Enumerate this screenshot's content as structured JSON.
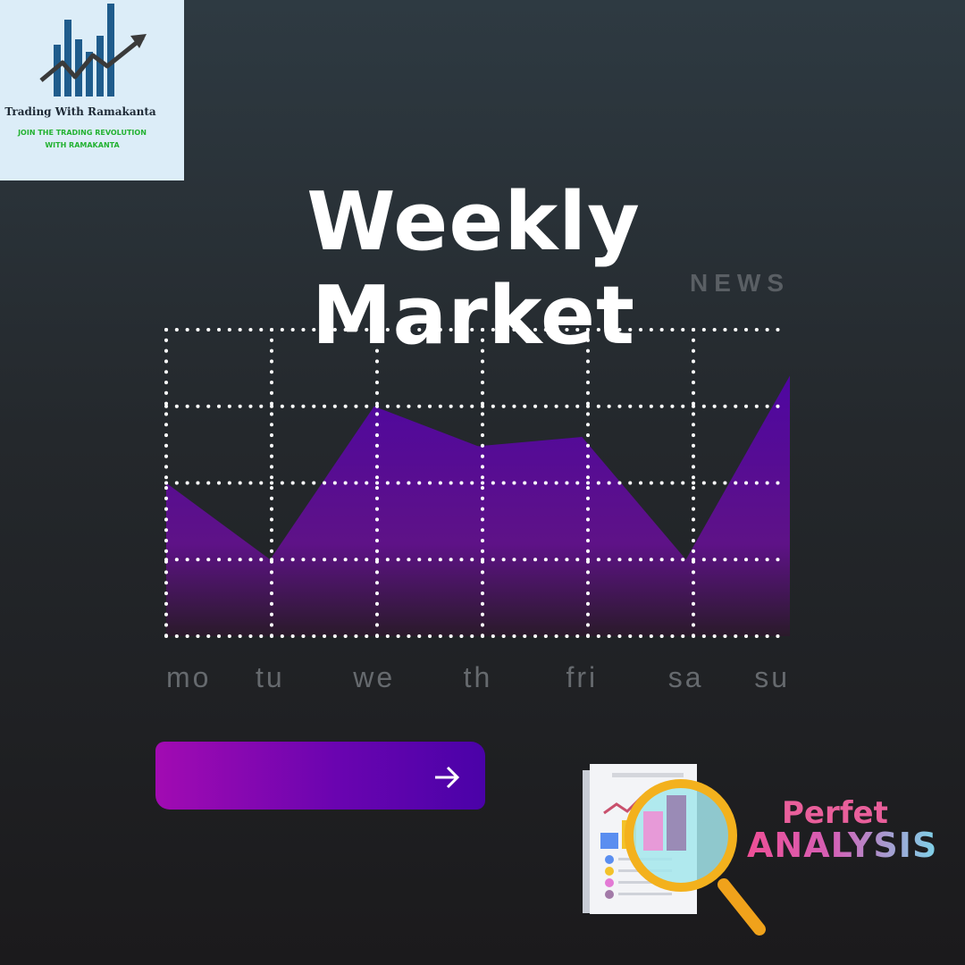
{
  "brand": {
    "name": "Trading With Ramakanta",
    "tagline_line1": "JOIN THE TRADING REVOLUTION",
    "tagline_line2": "WITH RAMAKANTA",
    "icon": "bar-chart-growth-arrow-logo",
    "colors": {
      "bars": "#1f5c8c",
      "arrow": "#3a3a3a",
      "tagline": "#23b232"
    }
  },
  "heading": {
    "title": "Weekly Market",
    "subtitle": "NEWS"
  },
  "chart_data": {
    "type": "area",
    "categories": [
      "mo",
      "tu",
      "we",
      "th",
      "fri",
      "sa",
      "su"
    ],
    "series": [
      {
        "values": [
          50,
          25,
          75,
          62,
          65,
          25,
          85
        ]
      }
    ],
    "grid": true,
    "gradient": [
      "#4a03a8",
      "#5e1287",
      "#2a1a2a"
    ]
  },
  "action_button": {
    "icon": "arrow-right-icon",
    "colors": [
      "#a20bb2",
      "#4a02a8"
    ]
  },
  "promo": {
    "line1": "Perfet",
    "line2": "ANALYSIS",
    "icon": "report-magnifier-icon"
  }
}
